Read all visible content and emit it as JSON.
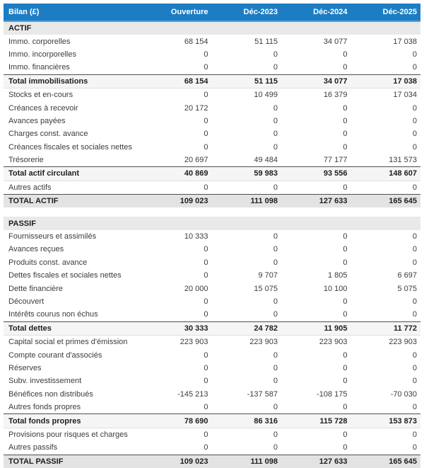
{
  "theme": {
    "header_bg": "#1d7dc3",
    "header_underline": "#5c9fd2",
    "section_bg": "#e9e9e9",
    "subtotal_bg": "#f5f5f5",
    "grandtotal_bg": "#e3e3e3",
    "rule_color": "#4f4f4f"
  },
  "table": {
    "title_column": "Bilan (£)",
    "columns": [
      "Ouverture",
      "Déc-2023",
      "Déc-2024",
      "Déc-2025"
    ],
    "rows": [
      {
        "type": "section",
        "label": "ACTIF",
        "values": [
          "",
          "",
          "",
          ""
        ]
      },
      {
        "type": "normal",
        "label": "Immo. corporelles",
        "values": [
          "68 154",
          "51 115",
          "34 077",
          "17 038"
        ]
      },
      {
        "type": "normal",
        "label": "Immo. incorporelles",
        "values": [
          "0",
          "0",
          "0",
          "0"
        ]
      },
      {
        "type": "normal",
        "label": "Immo. financières",
        "values": [
          "0",
          "0",
          "0",
          "0"
        ]
      },
      {
        "type": "subtotal",
        "label": "Total immobilisations",
        "values": [
          "68 154",
          "51 115",
          "34 077",
          "17 038"
        ]
      },
      {
        "type": "normal",
        "label": "Stocks et en-cours",
        "values": [
          "0",
          "10 499",
          "16 379",
          "17 034"
        ]
      },
      {
        "type": "normal",
        "label": "Créances à recevoir",
        "values": [
          "20 172",
          "0",
          "0",
          "0"
        ]
      },
      {
        "type": "normal",
        "label": "Avances payées",
        "values": [
          "0",
          "0",
          "0",
          "0"
        ]
      },
      {
        "type": "normal",
        "label": "Charges const. avance",
        "values": [
          "0",
          "0",
          "0",
          "0"
        ]
      },
      {
        "type": "normal",
        "label": "Créances fiscales et sociales nettes",
        "values": [
          "0",
          "0",
          "0",
          "0"
        ]
      },
      {
        "type": "normal",
        "label": "Trésorerie",
        "values": [
          "20 697",
          "49 484",
          "77 177",
          "131 573"
        ]
      },
      {
        "type": "subtotal",
        "label": "Total actif circulant",
        "values": [
          "40 869",
          "59 983",
          "93 556",
          "148 607"
        ]
      },
      {
        "type": "normal",
        "label": "Autres actifs",
        "values": [
          "0",
          "0",
          "0",
          "0"
        ]
      },
      {
        "type": "grandtotal",
        "label": "TOTAL ACTIF",
        "values": [
          "109 023",
          "111 098",
          "127 633",
          "165 645"
        ]
      },
      {
        "type": "spacer",
        "label": "",
        "values": [
          "",
          "",
          "",
          ""
        ]
      },
      {
        "type": "section",
        "label": "PASSIF",
        "values": [
          "",
          "",
          "",
          ""
        ]
      },
      {
        "type": "normal",
        "label": "Fournisseurs et assimilés",
        "values": [
          "10 333",
          "0",
          "0",
          "0"
        ]
      },
      {
        "type": "normal",
        "label": "Avances reçues",
        "values": [
          "0",
          "0",
          "0",
          "0"
        ]
      },
      {
        "type": "normal",
        "label": "Produits const. avance",
        "values": [
          "0",
          "0",
          "0",
          "0"
        ]
      },
      {
        "type": "normal",
        "label": "Dettes fiscales et sociales nettes",
        "values": [
          "0",
          "9 707",
          "1 805",
          "6 697"
        ]
      },
      {
        "type": "normal",
        "label": "Dette financière",
        "values": [
          "20 000",
          "15 075",
          "10 100",
          "5 075"
        ]
      },
      {
        "type": "normal",
        "label": "Découvert",
        "values": [
          "0",
          "0",
          "0",
          "0"
        ]
      },
      {
        "type": "normal",
        "label": "Intérêts courus non échus",
        "values": [
          "0",
          "0",
          "0",
          "0"
        ]
      },
      {
        "type": "subtotal",
        "label": "Total dettes",
        "values": [
          "30 333",
          "24 782",
          "11 905",
          "11 772"
        ]
      },
      {
        "type": "normal",
        "label": "Capital social et primes d'émission",
        "values": [
          "223 903",
          "223 903",
          "223 903",
          "223 903"
        ]
      },
      {
        "type": "normal",
        "label": "Compte courant d'associés",
        "values": [
          "0",
          "0",
          "0",
          "0"
        ]
      },
      {
        "type": "normal",
        "label": "Réserves",
        "values": [
          "0",
          "0",
          "0",
          "0"
        ]
      },
      {
        "type": "normal",
        "label": "Subv. investissement",
        "values": [
          "0",
          "0",
          "0",
          "0"
        ]
      },
      {
        "type": "normal",
        "label": "Bénéfices non distribués",
        "values": [
          "-145 213",
          "-137 587",
          "-108 175",
          "-70 030"
        ]
      },
      {
        "type": "normal",
        "label": "Autres fonds propres",
        "values": [
          "0",
          "0",
          "0",
          "0"
        ]
      },
      {
        "type": "subtotal",
        "label": "Total fonds propres",
        "values": [
          "78 690",
          "86 316",
          "115 728",
          "153 873"
        ]
      },
      {
        "type": "normal",
        "label": "Provisions pour risques et charges",
        "values": [
          "0",
          "0",
          "0",
          "0"
        ]
      },
      {
        "type": "normal",
        "label": "Autres passifs",
        "values": [
          "0",
          "0",
          "0",
          "0"
        ]
      },
      {
        "type": "grandtotal",
        "label": "TOTAL PASSIF",
        "values": [
          "109 023",
          "111 098",
          "127 633",
          "165 645"
        ]
      }
    ]
  }
}
